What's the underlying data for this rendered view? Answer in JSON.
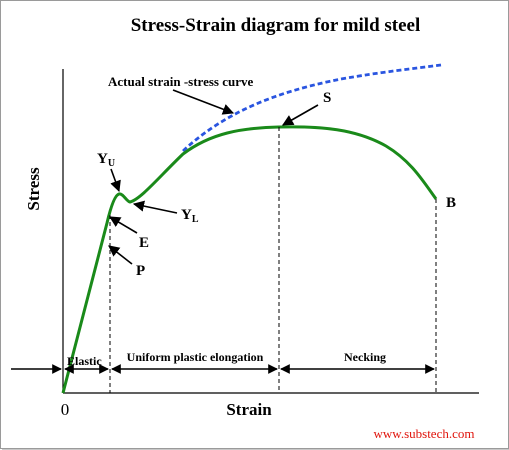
{
  "title": "Stress-Strain diagram for mild steel",
  "axes": {
    "ylabel": "Stress",
    "xlabel": "Strain",
    "origin_label": "0"
  },
  "curve_labels": {
    "actual_curve": "Actual strain -stress curve",
    "point_s": "S",
    "point_b": "B",
    "point_yu_main": "Y",
    "point_yu_sub": "U",
    "point_yl_main": "Y",
    "point_yl_sub": "L",
    "point_e": "E",
    "point_p": "P"
  },
  "regions": {
    "elastic": "Elastic",
    "uniform": "Uniform plastic elongation",
    "necking": "Necking"
  },
  "source": "www.substech.com",
  "colors": {
    "engineering_curve": "#1a8a1a",
    "actual_curve": "#2a55e0",
    "source_text": "#e0140c",
    "axis": "#000000"
  }
}
